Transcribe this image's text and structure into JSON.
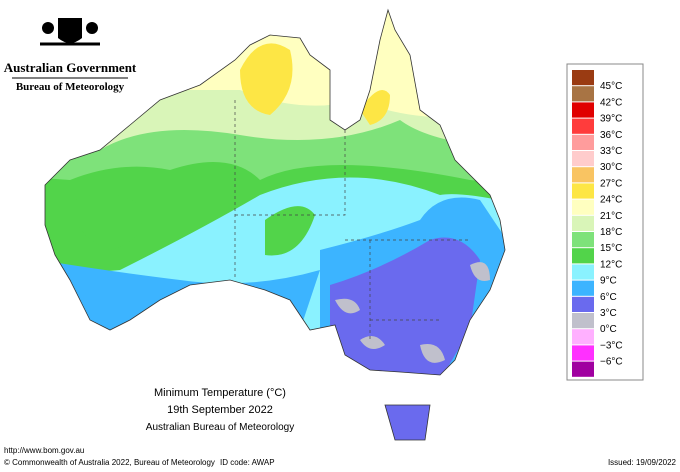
{
  "header": {
    "agency": "Australian Government",
    "bureau": "Bureau of Meteorology"
  },
  "map": {
    "title": "Minimum Temperature (°C)",
    "date": "19th September 2022",
    "source": "Australian Bureau of Meteorology"
  },
  "legend": {
    "labels": [
      "45°C",
      "42°C",
      "39°C",
      "36°C",
      "33°C",
      "30°C",
      "27°C",
      "24°C",
      "21°C",
      "18°C",
      "15°C",
      "12°C",
      "9°C",
      "6°C",
      "3°C",
      "0°C",
      "−3°C",
      "−6°C"
    ],
    "colors": [
      "#9a3b12",
      "#a87444",
      "#e00000",
      "#ff3c3c",
      "#ff9c9c",
      "#ffcccc",
      "#f9c462",
      "#fde645",
      "#ffffc0",
      "#d9f5b8",
      "#7ee27a",
      "#52d44a",
      "#8af2ff",
      "#3cb4ff",
      "#6a6aee",
      "#c0c0cc",
      "#ffb0ff",
      "#ff30ff",
      "#a000a0"
    ]
  },
  "footer": {
    "url": "http://www.bom.gov.au",
    "copyright": "© Commonwealth of Australia 2022, Bureau of Meteorology",
    "id": "ID code: AWAP",
    "issued": "Issued: 19/09/2022"
  }
}
